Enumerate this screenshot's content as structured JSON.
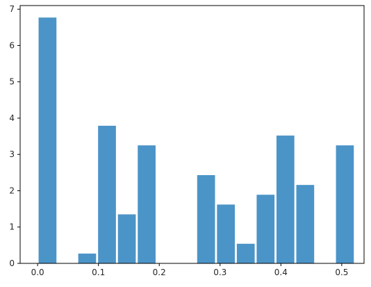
{
  "chart_data": {
    "type": "bar",
    "title": "",
    "xlabel": "",
    "ylabel": "",
    "xlim": [
      -0.0287,
      0.5367
    ],
    "ylim": [
      0,
      7.1
    ],
    "grid": false,
    "bar_color": "#4b94c8",
    "bin_width": 0.0326,
    "bins": [
      {
        "x": 0.0163,
        "value": 6.77
      },
      {
        "x": 0.0815,
        "value": 0.27
      },
      {
        "x": 0.1141,
        "value": 3.79
      },
      {
        "x": 0.1467,
        "value": 1.35
      },
      {
        "x": 0.1793,
        "value": 3.25
      },
      {
        "x": 0.277,
        "value": 2.43
      },
      {
        "x": 0.3096,
        "value": 1.62
      },
      {
        "x": 0.3422,
        "value": 0.54
      },
      {
        "x": 0.3748,
        "value": 1.89
      },
      {
        "x": 0.4074,
        "value": 3.52
      },
      {
        "x": 0.44,
        "value": 2.16
      },
      {
        "x": 0.5052,
        "value": 3.25
      }
    ],
    "xticks": [
      {
        "value": 0.0,
        "label": "0.0"
      },
      {
        "value": 0.1,
        "label": "0.1"
      },
      {
        "value": 0.2,
        "label": "0.2"
      },
      {
        "value": 0.3,
        "label": "0.3"
      },
      {
        "value": 0.4,
        "label": "0.4"
      },
      {
        "value": 0.5,
        "label": "0.5"
      }
    ],
    "yticks": [
      {
        "value": 0,
        "label": "0"
      },
      {
        "value": 1,
        "label": "1"
      },
      {
        "value": 2,
        "label": "2"
      },
      {
        "value": 3,
        "label": "3"
      },
      {
        "value": 4,
        "label": "4"
      },
      {
        "value": 5,
        "label": "5"
      },
      {
        "value": 6,
        "label": "6"
      },
      {
        "value": 7,
        "label": "7"
      }
    ]
  }
}
